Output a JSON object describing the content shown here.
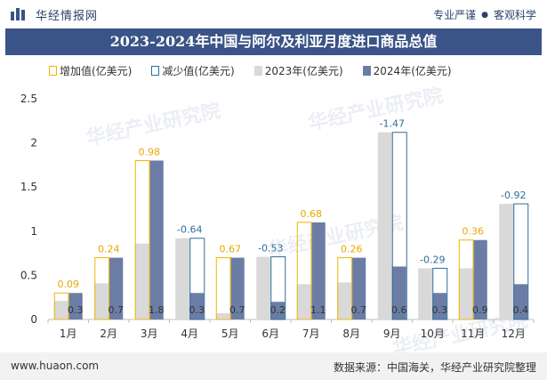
{
  "brand": {
    "name": "华经情报网",
    "slogan_left": "专业严谨",
    "slogan_right": "客观科学"
  },
  "title": "2023-2024年中国与阿尔及利亚月度进口商品总值",
  "legend": {
    "increase": "增加值(亿美元)",
    "decrease": "减少值(亿美元)",
    "y2023": "2023年(亿美元)",
    "y2024": "2024年(亿美元)"
  },
  "watermark": "华经产业研究院",
  "footer": {
    "url": "www.huaon.com",
    "source": "数据来源：中国海关，华经产业研究院整理"
  },
  "colors": {
    "y2023": "#d9d9d9",
    "y2024": "#6b7da5",
    "increase": "#f0b400",
    "decrease": "#2d6f9a",
    "title_bg": "#3a5487"
  },
  "chart_data": {
    "type": "bar",
    "categories": [
      "1月",
      "2月",
      "3月",
      "4月",
      "5月",
      "6月",
      "7月",
      "8月",
      "9月",
      "10月",
      "11月",
      "12月"
    ],
    "series": [
      {
        "name": "2023年(亿美元)",
        "values": [
          0.21,
          0.41,
          0.86,
          0.92,
          0.07,
          0.71,
          0.4,
          0.42,
          2.12,
          0.58,
          0.58,
          1.31
        ]
      },
      {
        "name": "2024年(亿美元)",
        "values": [
          0.3,
          0.7,
          1.8,
          0.3,
          0.7,
          0.2,
          1.1,
          0.7,
          0.6,
          0.3,
          0.9,
          0.4
        ]
      }
    ],
    "data_labels_2024": [
      "0.3",
      "0.7",
      "1.8",
      "0.3",
      "0.7",
      "0.2",
      "1.1",
      "0.7",
      "0.6",
      "0.3",
      "0.9",
      "0.4"
    ],
    "changes": [
      0.09,
      0.24,
      0.98,
      -0.64,
      0.67,
      -0.53,
      0.68,
      0.26,
      -1.47,
      -0.29,
      0.36,
      -0.92
    ],
    "change_labels": [
      "0.09",
      "0.24",
      "0.98",
      "-0.64",
      "0.67",
      "-0.53",
      "0.68",
      "0.26",
      "-1.47",
      "-0.29",
      "0.36",
      "-0.92"
    ],
    "ylim": [
      0,
      2.5
    ],
    "yticks": [
      "0",
      "0.5",
      "1",
      "1.5",
      "2",
      "2.5"
    ],
    "grid": false,
    "legend_position": "top"
  }
}
